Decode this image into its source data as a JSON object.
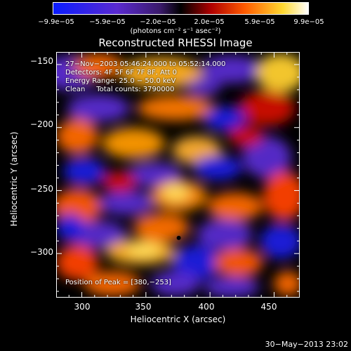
{
  "colorbar": {
    "ticks": [
      "−9.9e−05",
      "−5.9e−05",
      "−2.0e−05",
      "2.0e−05",
      "5.9e−05",
      "9.9e−05"
    ],
    "units": "(photons cm⁻² s⁻¹ asec⁻²)"
  },
  "chart_data": {
    "type": "heatmap",
    "title": "Reconstructed RHESSI Image",
    "xlabel": "Heliocentric X (arcsec)",
    "ylabel": "Heliocentric Y (arcsec)",
    "xlim": [
      280,
      470
    ],
    "ylim": [
      -335,
      -140
    ],
    "x_ticks": [
      "300",
      "350",
      "400",
      "450"
    ],
    "y_ticks": [
      "−150",
      "−200",
      "−250",
      "−300"
    ],
    "x_tick_values": [
      300,
      350,
      400,
      450
    ],
    "y_tick_values": [
      -150,
      -200,
      -250,
      -300
    ],
    "value_range": [
      -9.9e-05,
      9.9e-05
    ],
    "colormap": "rhessi-blue-purple-black-red-yellow-white",
    "peak": [
      380,
      -253
    ],
    "annotations": {
      "time": "27−Nov−2003 05:46:24.000 to 05:52:14.000",
      "detectors": "Detectors: 4F 5F 6F 7F 8F, Att 0",
      "energy": "Energy Range: 25.0 − 50.0 keV",
      "method": "Clean     Total counts: 3790000",
      "peak_label": "Position of Peak = [380,−253]"
    }
  },
  "footer": {
    "timestamp": "30−May−2013 23:02"
  }
}
